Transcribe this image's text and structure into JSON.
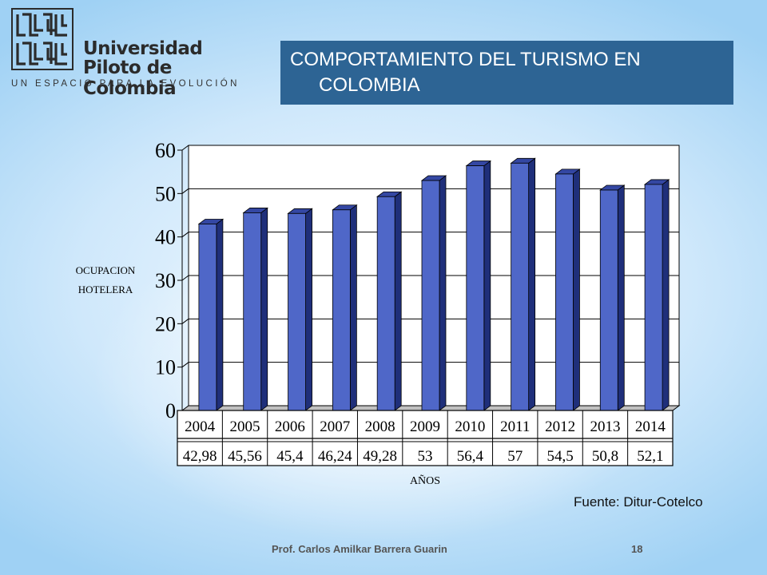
{
  "header": {
    "university_name_line1": "Universidad",
    "university_name_line2": "Piloto de Colombia",
    "tagline": "UN ESPACIO PARA LA EVOLUCIÓN"
  },
  "slide": {
    "title_line1": "COMPORTAMIENTO  DEL TURISMO EN",
    "title_line2": "COLOMBIA",
    "source": "Fuente: Ditur-Cotelco",
    "footer_author": "Prof. Carlos Amilkar Barrera Guarin",
    "page_number": "18"
  },
  "colors": {
    "title_bg": "#2d6494",
    "bar_front": "#4f67c8",
    "bar_side": "#1f2f7a",
    "bar_top": "#3447a3"
  },
  "chart_data": {
    "type": "bar",
    "categories": [
      "2004",
      "2005",
      "2006",
      "2007",
      "2008",
      "2009",
      "2010",
      "2011",
      "2012",
      "2013",
      "2014"
    ],
    "values": [
      42.98,
      45.56,
      45.4,
      46.24,
      49.28,
      53,
      56.4,
      57,
      54.5,
      50.8,
      52.1
    ],
    "value_labels": [
      "42,98",
      "45,56",
      "45,4",
      "46,24",
      "49,28",
      "53",
      "56,4",
      "57",
      "54,5",
      "50,8",
      "52,1"
    ],
    "ylabel_line1": "OCUPACION",
    "ylabel_line2": "HOTELERA",
    "xlabel": "AÑOS",
    "ylim": [
      0,
      60
    ],
    "yticks": [
      "0",
      "10",
      "20",
      "30",
      "40",
      "50",
      "60"
    ],
    "grid": true
  }
}
